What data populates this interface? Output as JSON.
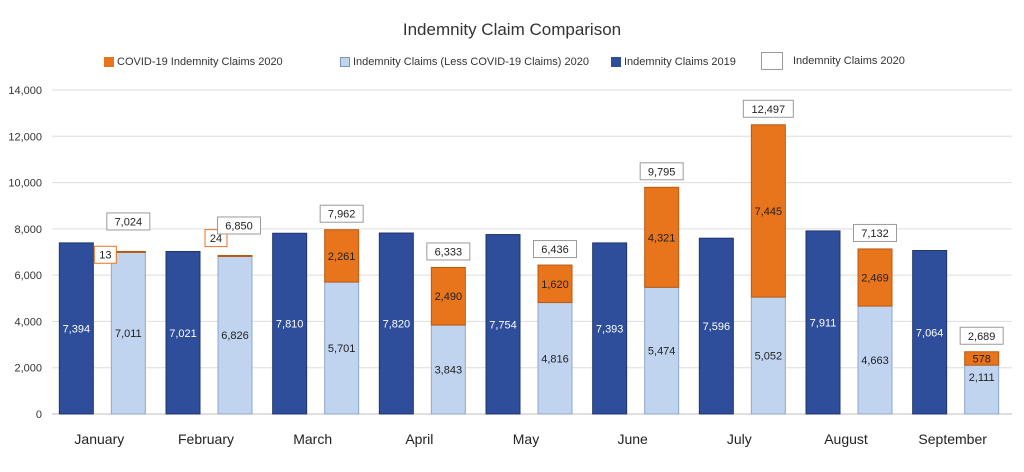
{
  "chart_data": {
    "type": "bar",
    "title": "Indemnity Claim Comparison",
    "categories": [
      "January",
      "February",
      "March",
      "April",
      "May",
      "June",
      "July",
      "August",
      "September"
    ],
    "series": [
      {
        "name": "Indemnity Claims 2019",
        "color": "#2e4e9b",
        "values": [
          7394,
          7021,
          7810,
          7820,
          7754,
          7393,
          7596,
          7911,
          7064
        ]
      },
      {
        "name": "Indemnity Claims (Less COVID-19 Claims) 2020",
        "color": "#c0d3ef",
        "values": [
          7011,
          6826,
          5701,
          3843,
          4816,
          5474,
          5052,
          4663,
          2111
        ]
      },
      {
        "name": "COVID-19 Indemnity Claims 2020",
        "color": "#e8741c",
        "values": [
          13,
          24,
          2261,
          2490,
          1620,
          4321,
          7445,
          2469,
          578
        ]
      }
    ],
    "totals_2020": [
      7024,
      6850,
      7962,
      6333,
      6436,
      9795,
      12497,
      7132,
      2689
    ],
    "value_labels": {
      "y2019": [
        "7,394",
        "7,021",
        "7,810",
        "7,820",
        "7,754",
        "7,393",
        "7,596",
        "7,911",
        "7,064"
      ],
      "less": [
        "7,011",
        "6,826",
        "5,701",
        "3,843",
        "4,816",
        "5,474",
        "5,052",
        "4,663",
        "2,111"
      ],
      "covid": [
        "13",
        "24",
        "2,261",
        "2,490",
        "1,620",
        "4,321",
        "7,445",
        "2,469",
        "578"
      ],
      "total": [
        "7,024",
        "6,850",
        "7,962",
        "6,333",
        "6,436",
        "9,795",
        "12,497",
        "7,132",
        "2,689"
      ]
    },
    "yaxis": {
      "min": 0,
      "max": 14000,
      "ticks": [
        0,
        2000,
        4000,
        6000,
        8000,
        10000,
        12000,
        14000
      ],
      "tick_labels": [
        "0",
        "2,000",
        "4,000",
        "6,000",
        "8,000",
        "10,000",
        "12,000",
        "14,000"
      ]
    },
    "grid": true,
    "legend_position": "top",
    "legend": [
      "COVID-19 Indemnity Claims 2020",
      "Indemnity Claims (Less COVID-19 Claims) 2020",
      "Indemnity Claims 2019",
      "Indemnity Claims 2020"
    ]
  },
  "colors": {
    "covid": "#e8741c",
    "less": "#c0d3ef",
    "y2019": "#2e4e9b",
    "label_border_covid": "#e8741c",
    "label_border_total": "#9a9a9a"
  }
}
